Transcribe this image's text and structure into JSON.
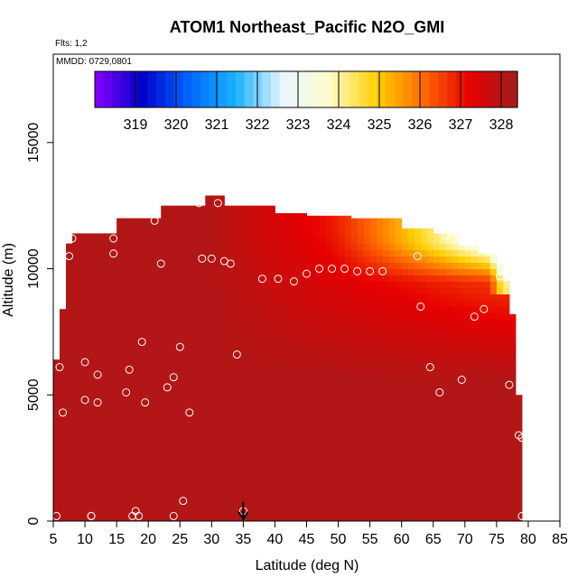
{
  "chart_data": {
    "type": "heatmap",
    "title": "ATOM1 Northeast_Pacific N2O_GMI",
    "annotations": {
      "flights": "Flts: 1,2",
      "dates": "MMDD: 0729,0801"
    },
    "xlabel": "Latitude (deg N)",
    "ylabel": "Altitude (m)",
    "xlim": [
      5,
      85
    ],
    "ylim": [
      0,
      18500
    ],
    "x_ticks": [
      "5",
      "10",
      "15",
      "20",
      "25",
      "30",
      "35",
      "40",
      "45",
      "50",
      "55",
      "60",
      "65",
      "70",
      "75",
      "80",
      "85"
    ],
    "y_ticks": [
      "0",
      "5000",
      "10000",
      "15000"
    ],
    "colorbar": {
      "labels": [
        "319",
        "320",
        "321",
        "322",
        "323",
        "324",
        "325",
        "326",
        "327",
        "328"
      ],
      "range": [
        318,
        328.4
      ],
      "stops": [
        "#8a00ff",
        "#0000c8",
        "#0066ff",
        "#19b2ff",
        "#e8f7ff",
        "#fffccc",
        "#ffd000",
        "#ff6a00",
        "#e60000",
        "#a01e1e"
      ]
    },
    "arrow_marker_latitude": 35,
    "field": {
      "lat_extent": [
        5,
        79
      ],
      "alt_top_profile": [
        [
          5,
          6400
        ],
        [
          6,
          8400
        ],
        [
          7,
          11000
        ],
        [
          8,
          11400
        ],
        [
          14,
          11400
        ],
        [
          14.5,
          12000
        ],
        [
          21,
          12000
        ],
        [
          22,
          12500
        ],
        [
          28,
          12500
        ],
        [
          28.5,
          12900
        ],
        [
          31,
          12900
        ],
        [
          31.5,
          12500
        ],
        [
          37,
          12500
        ],
        [
          40,
          12200
        ],
        [
          45,
          12100
        ],
        [
          52,
          12000
        ],
        [
          60,
          11600
        ],
        [
          65,
          11400
        ],
        [
          69,
          10900
        ],
        [
          72,
          10600
        ],
        [
          75,
          10200
        ],
        [
          76,
          9500
        ],
        [
          77,
          8200
        ],
        [
          77.5,
          6500
        ],
        [
          78,
          5000
        ],
        [
          78.5,
          4000
        ],
        [
          79,
          3300
        ]
      ]
    },
    "samples": [
      [
        5.5,
        200
      ],
      [
        6,
        6100
      ],
      [
        6.5,
        4300
      ],
      [
        7.5,
        10500
      ],
      [
        8,
        11200
      ],
      [
        10,
        6300
      ],
      [
        10,
        4800
      ],
      [
        11,
        200
      ],
      [
        11,
        200
      ],
      [
        12,
        5800
      ],
      [
        12,
        4700
      ],
      [
        14.5,
        11200
      ],
      [
        14.5,
        10600
      ],
      [
        16.5,
        5100
      ],
      [
        17,
        6000
      ],
      [
        17.5,
        200
      ],
      [
        18,
        400
      ],
      [
        18.5,
        200
      ],
      [
        19,
        7100
      ],
      [
        19.5,
        4700
      ],
      [
        21,
        11900
      ],
      [
        22,
        10200
      ],
      [
        23,
        5300
      ],
      [
        24,
        5700
      ],
      [
        24,
        200
      ],
      [
        25,
        6900
      ],
      [
        25.5,
        800
      ],
      [
        26.5,
        4300
      ],
      [
        28,
        12600
      ],
      [
        28.5,
        10400
      ],
      [
        30,
        10400
      ],
      [
        31,
        12600
      ],
      [
        32,
        10300
      ],
      [
        33,
        10200
      ],
      [
        34,
        6600
      ],
      [
        35,
        400
      ],
      [
        38,
        9600
      ],
      [
        40.5,
        9600
      ],
      [
        43,
        9500
      ],
      [
        45,
        9800
      ],
      [
        47,
        10000
      ],
      [
        49,
        10000
      ],
      [
        51,
        10000
      ],
      [
        53,
        9900
      ],
      [
        55,
        9900
      ],
      [
        57,
        9900
      ],
      [
        62.5,
        10500
      ],
      [
        63,
        8500
      ],
      [
        64.5,
        6100
      ],
      [
        66,
        5100
      ],
      [
        67,
        11300
      ],
      [
        69.5,
        5600
      ],
      [
        71.5,
        8100
      ],
      [
        73,
        8400
      ],
      [
        75.5,
        9700
      ],
      [
        77,
        5400
      ],
      [
        78.5,
        3400
      ],
      [
        79,
        3300
      ],
      [
        79,
        200
      ]
    ]
  }
}
